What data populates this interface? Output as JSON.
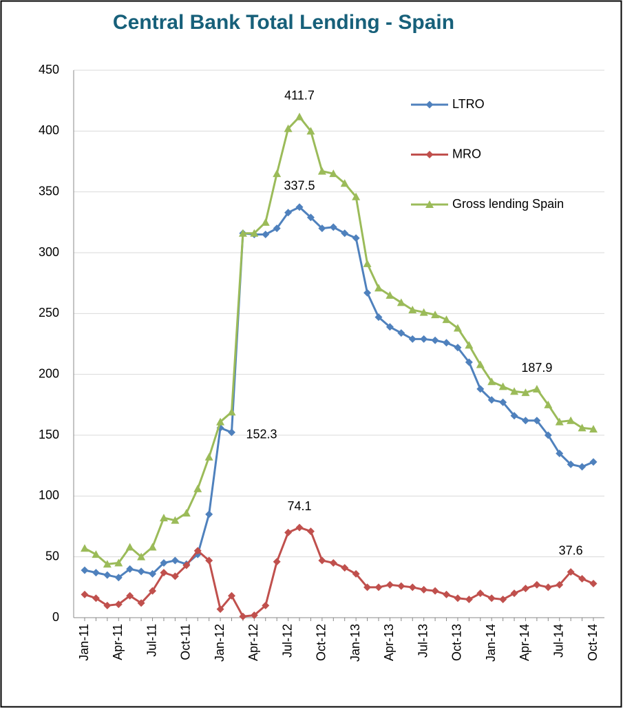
{
  "chart_data": {
    "type": "line",
    "title": "Central Bank Total Lending - Spain",
    "categories": [
      "Jan-11",
      null,
      null,
      "Apr-11",
      null,
      null,
      "Jul-11",
      null,
      null,
      "Oct-11",
      null,
      null,
      "Jan-12",
      null,
      null,
      "Apr-12",
      null,
      null,
      "Jul-12",
      null,
      null,
      "Oct-12",
      null,
      null,
      "Jan-13",
      null,
      null,
      "Apr-13",
      null,
      null,
      "Jul-13",
      null,
      null,
      "Oct-13",
      null,
      null,
      "Jan-14",
      null,
      null,
      "Apr-14",
      null,
      null,
      "Jul-14",
      null,
      null,
      "Oct-14"
    ],
    "series": [
      {
        "name": "LTRO",
        "color": "#4f81bd",
        "marker": "diamond",
        "values": [
          39,
          37,
          35,
          33,
          40,
          38,
          36,
          45,
          47,
          44,
          52,
          85,
          156,
          152.3,
          316,
          315,
          315,
          320,
          333,
          337.5,
          329,
          320,
          321,
          316,
          312,
          267,
          247,
          239,
          234,
          229,
          229,
          228,
          226,
          222,
          210,
          188,
          179,
          177,
          166,
          162,
          162,
          150,
          135,
          126,
          124,
          128
        ],
        "value_labels": [
          null,
          null,
          null,
          null,
          null,
          null,
          null,
          null,
          null,
          null,
          null,
          null,
          null,
          "152.3",
          null,
          null,
          null,
          null,
          null,
          "337.5",
          null,
          null,
          null,
          null,
          null,
          null,
          null,
          null,
          null,
          null,
          null,
          null,
          null,
          null,
          null,
          null,
          null,
          null,
          null,
          null,
          null,
          null,
          null,
          null,
          null,
          null
        ]
      },
      {
        "name": "MRO",
        "color": "#c0504d",
        "marker": "diamond",
        "values": [
          19,
          16,
          10,
          11,
          18,
          12,
          22,
          37,
          34,
          43,
          55,
          47,
          7,
          18,
          1,
          2,
          10,
          46,
          70,
          74.1,
          71,
          47,
          45,
          41,
          36,
          25,
          25,
          27,
          26,
          25,
          23,
          22,
          19,
          16,
          15,
          20,
          16,
          15,
          20,
          24,
          27,
          25,
          27,
          37.6,
          32,
          28
        ],
        "value_labels": [
          null,
          null,
          null,
          null,
          null,
          null,
          null,
          null,
          null,
          null,
          null,
          null,
          null,
          null,
          null,
          null,
          null,
          null,
          null,
          "74.1",
          null,
          null,
          null,
          null,
          null,
          null,
          null,
          null,
          null,
          null,
          null,
          null,
          null,
          null,
          null,
          null,
          null,
          null,
          null,
          null,
          null,
          null,
          null,
          "37.6",
          null,
          null
        ]
      },
      {
        "name": "Gross lending Spain",
        "color": "#9bbb59",
        "marker": "triangle",
        "values": [
          57,
          52,
          44,
          45,
          58,
          50,
          58,
          82,
          80,
          86,
          106,
          132,
          161,
          169,
          316,
          316,
          325,
          365,
          402,
          411.7,
          400,
          367,
          365,
          357,
          346,
          291,
          271,
          265,
          259,
          253,
          251,
          249,
          245,
          238,
          224,
          208,
          194,
          190,
          186,
          185,
          187.9,
          175,
          161,
          162,
          156,
          155
        ],
        "value_labels": [
          null,
          null,
          null,
          null,
          null,
          null,
          null,
          null,
          null,
          null,
          null,
          null,
          null,
          null,
          null,
          null,
          null,
          null,
          null,
          "411.7",
          null,
          null,
          null,
          null,
          null,
          null,
          null,
          null,
          null,
          null,
          null,
          null,
          null,
          null,
          null,
          null,
          null,
          null,
          null,
          null,
          "187.9",
          null,
          null,
          null,
          null,
          null
        ]
      }
    ],
    "ylim": [
      0,
      450
    ],
    "yticks": [
      0,
      50,
      100,
      150,
      200,
      250,
      300,
      350,
      400,
      450
    ],
    "grid": true,
    "legend": "top-right"
  }
}
